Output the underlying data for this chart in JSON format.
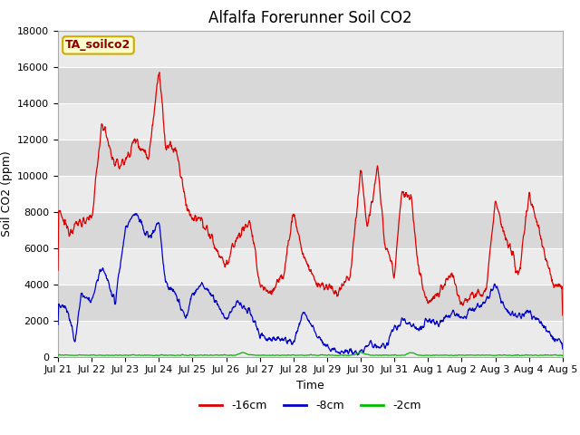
{
  "title": "Alfalfa Forerunner Soil CO2",
  "xlabel": "Time",
  "ylabel": "Soil CO2 (ppm)",
  "ylim": [
    0,
    18000
  ],
  "yticks": [
    0,
    2000,
    4000,
    6000,
    8000,
    10000,
    12000,
    14000,
    16000,
    18000
  ],
  "xtick_labels": [
    "Jul 21",
    "Jul 22",
    "Jul 23",
    "Jul 24",
    "Jul 25",
    "Jul 26",
    "Jul 27",
    "Jul 28",
    "Jul 29",
    "Jul 30",
    "Jul 31",
    "Aug 1",
    "Aug 2",
    "Aug 3",
    "Aug 4",
    "Aug 5"
  ],
  "legend_labels": [
    "-16cm",
    "-8cm",
    "-2cm"
  ],
  "line_colors": [
    "#dd0000",
    "#0000cc",
    "#00bb00"
  ],
  "annotation_text": "TA_soilco2",
  "annotation_color": "#880000",
  "annotation_bg": "#ffffcc",
  "annotation_border": "#ccaa00",
  "bg_light": "#ebebeb",
  "bg_dark": "#d8d8d8",
  "grid_color": "#ffffff",
  "title_fontsize": 12,
  "axis_fontsize": 9,
  "tick_fontsize": 8,
  "n_days": 15
}
